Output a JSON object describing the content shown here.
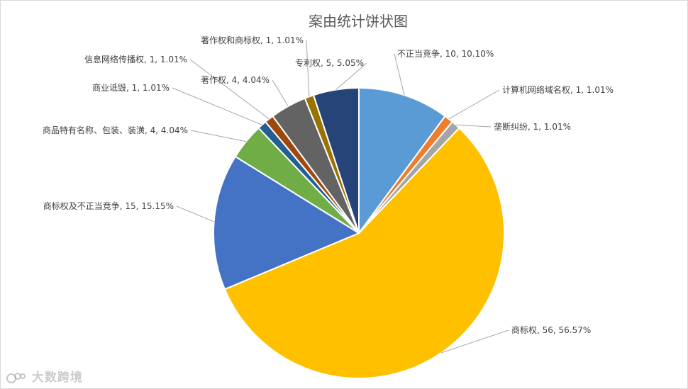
{
  "chart_data": {
    "type": "pie",
    "title": "案由统计饼状图",
    "slices": [
      {
        "name": "不正当竞争",
        "value": 10,
        "percent": "10.10%",
        "color": "#5B9BD5"
      },
      {
        "name": "计算机网络域名权",
        "value": 1,
        "percent": "1.01%",
        "color": "#ED7D31"
      },
      {
        "name": "垄断纠纷",
        "value": 1,
        "percent": "1.01%",
        "color": "#A5A5A5"
      },
      {
        "name": "商标权",
        "value": 56,
        "percent": "56.57%",
        "color": "#FFC000"
      },
      {
        "name": "商标权及不正当竞争",
        "value": 15,
        "percent": "15.15%",
        "color": "#4472C4"
      },
      {
        "name": "商品特有名称、包装、装潢",
        "value": 4,
        "percent": "4.04%",
        "color": "#70AD47"
      },
      {
        "name": "商业诋毁",
        "value": 1,
        "percent": "1.01%",
        "color": "#255E91"
      },
      {
        "name": "信息网络传播权",
        "value": 1,
        "percent": "1.01%",
        "color": "#9E480E"
      },
      {
        "name": "著作权",
        "value": 4,
        "percent": "4.04%",
        "color": "#636363"
      },
      {
        "name": "著作权和商标权",
        "value": 1,
        "percent": "1.01%",
        "color": "#997300"
      },
      {
        "name": "专利权",
        "value": 5,
        "percent": "5.05%",
        "color": "#264478"
      }
    ]
  },
  "watermark": {
    "text": "大数跨境",
    "icon": "bubble-logo-icon"
  }
}
